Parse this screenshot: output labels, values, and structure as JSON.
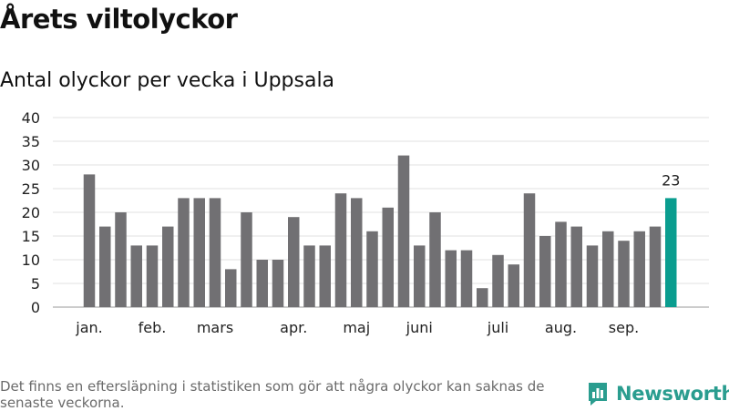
{
  "header": {
    "title": "Årets viltolyckor",
    "subtitle": "Antal olyckor per vecka i Uppsala"
  },
  "footer": {
    "note": "Det finns en eftersläpning i statistiken som gör att några olyckor kan saknas de senaste veckorna.",
    "brand": "Newsworthy",
    "brand_icon": "bar-chart-speech-bubble-icon"
  },
  "colors": {
    "bar": "#717073",
    "highlight": "#0a9d8f",
    "grid": "#e2e2e2",
    "brand": "#2a9d8f"
  },
  "chart_data": {
    "type": "bar",
    "title": "Antal olyckor per vecka i Uppsala",
    "xlabel": "",
    "ylabel": "",
    "ylim": [
      0,
      40
    ],
    "yticks": [
      0,
      5,
      10,
      15,
      20,
      25,
      30,
      35,
      40
    ],
    "grid": true,
    "values": [
      28,
      17,
      20,
      13,
      13,
      17,
      23,
      23,
      23,
      8,
      20,
      10,
      10,
      19,
      13,
      13,
      24,
      23,
      16,
      21,
      32,
      13,
      20,
      12,
      12,
      4,
      11,
      9,
      24,
      15,
      18,
      17,
      13,
      16,
      14,
      16,
      17,
      23
    ],
    "highlight_index": 37,
    "highlight_label": "23",
    "month_labels": [
      {
        "label": "jan.",
        "bar_index": 0
      },
      {
        "label": "feb.",
        "bar_index": 4
      },
      {
        "label": "mars",
        "bar_index": 8
      },
      {
        "label": "apr.",
        "bar_index": 13
      },
      {
        "label": "maj",
        "bar_index": 17
      },
      {
        "label": "juni",
        "bar_index": 21
      },
      {
        "label": "juli",
        "bar_index": 26
      },
      {
        "label": "aug.",
        "bar_index": 30
      },
      {
        "label": "sep.",
        "bar_index": 34
      }
    ]
  }
}
